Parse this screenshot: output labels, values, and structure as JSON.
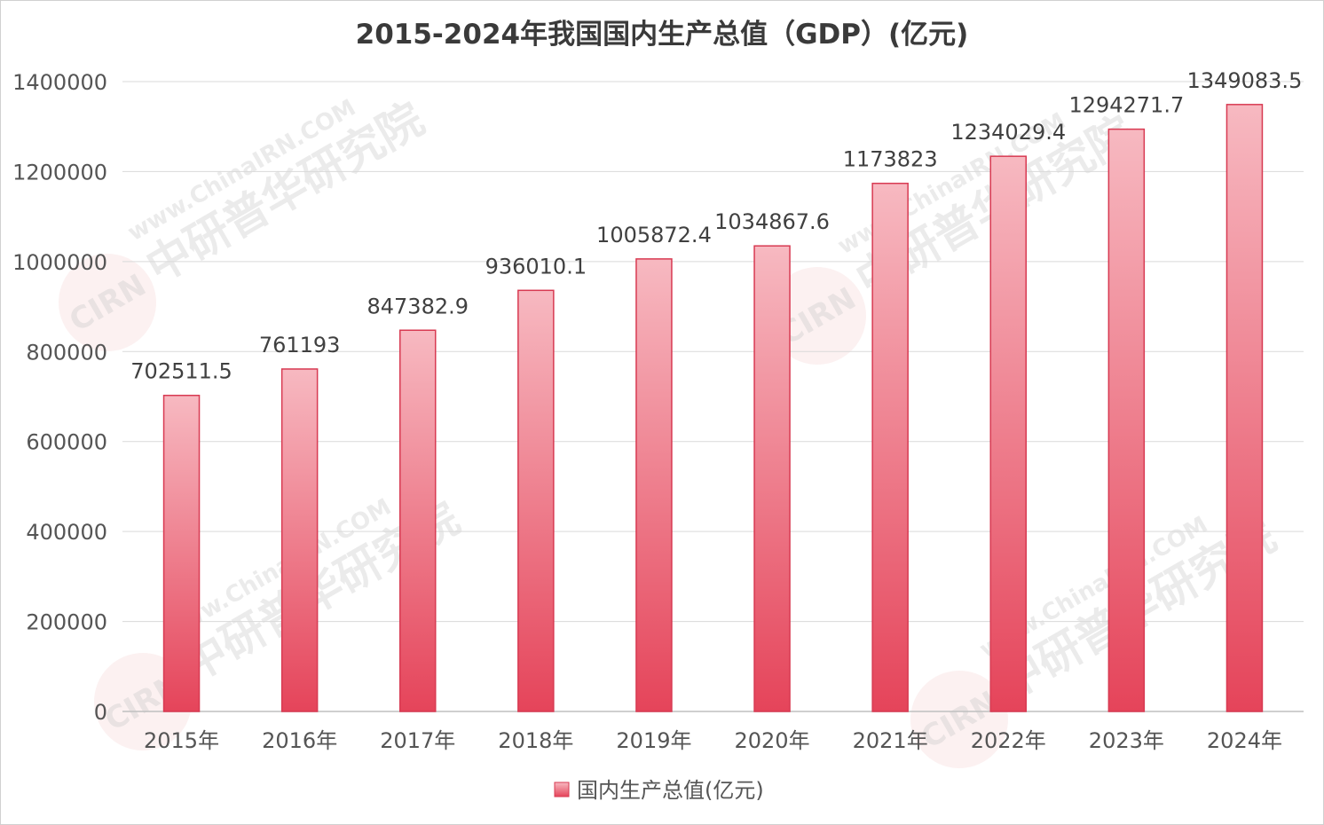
{
  "chart_data": {
    "type": "bar",
    "title": "2015-2024年我国国内生产总值（GDP）(亿元)",
    "categories": [
      "2015年",
      "2016年",
      "2017年",
      "2018年",
      "2019年",
      "2020年",
      "2021年",
      "2022年",
      "2023年",
      "2024年"
    ],
    "series": [
      {
        "name": "国内生产总值(亿元)",
        "values": [
          702511.5,
          761193,
          847382.9,
          936010.1,
          1005872.4,
          1034867.6,
          1173823,
          1234029.4,
          1294271.7,
          1349083.5
        ],
        "labels": [
          "702511.5",
          "761193",
          "847382.9",
          "936010.1",
          "1005872.4",
          "1034867.6",
          "1173823",
          "1234029.4",
          "1294271.7",
          "1349083.5"
        ]
      }
    ],
    "yticks": [
      "0",
      "200000",
      "400000",
      "600000",
      "800000",
      "1000000",
      "1200000",
      "1400000"
    ],
    "ylim": [
      0,
      1400000
    ],
    "xlabel": "",
    "ylabel": "",
    "grid": true,
    "legend_position": "bottom-center"
  },
  "watermark": {
    "url_text": "www.ChinaIRN.COM",
    "org_text": "中研普华研究院",
    "badge_text": "CIRN"
  },
  "colors": {
    "bar_top": "#f7b9c1",
    "bar_bottom": "#e5445a",
    "bar_edge": "#d83a52"
  }
}
